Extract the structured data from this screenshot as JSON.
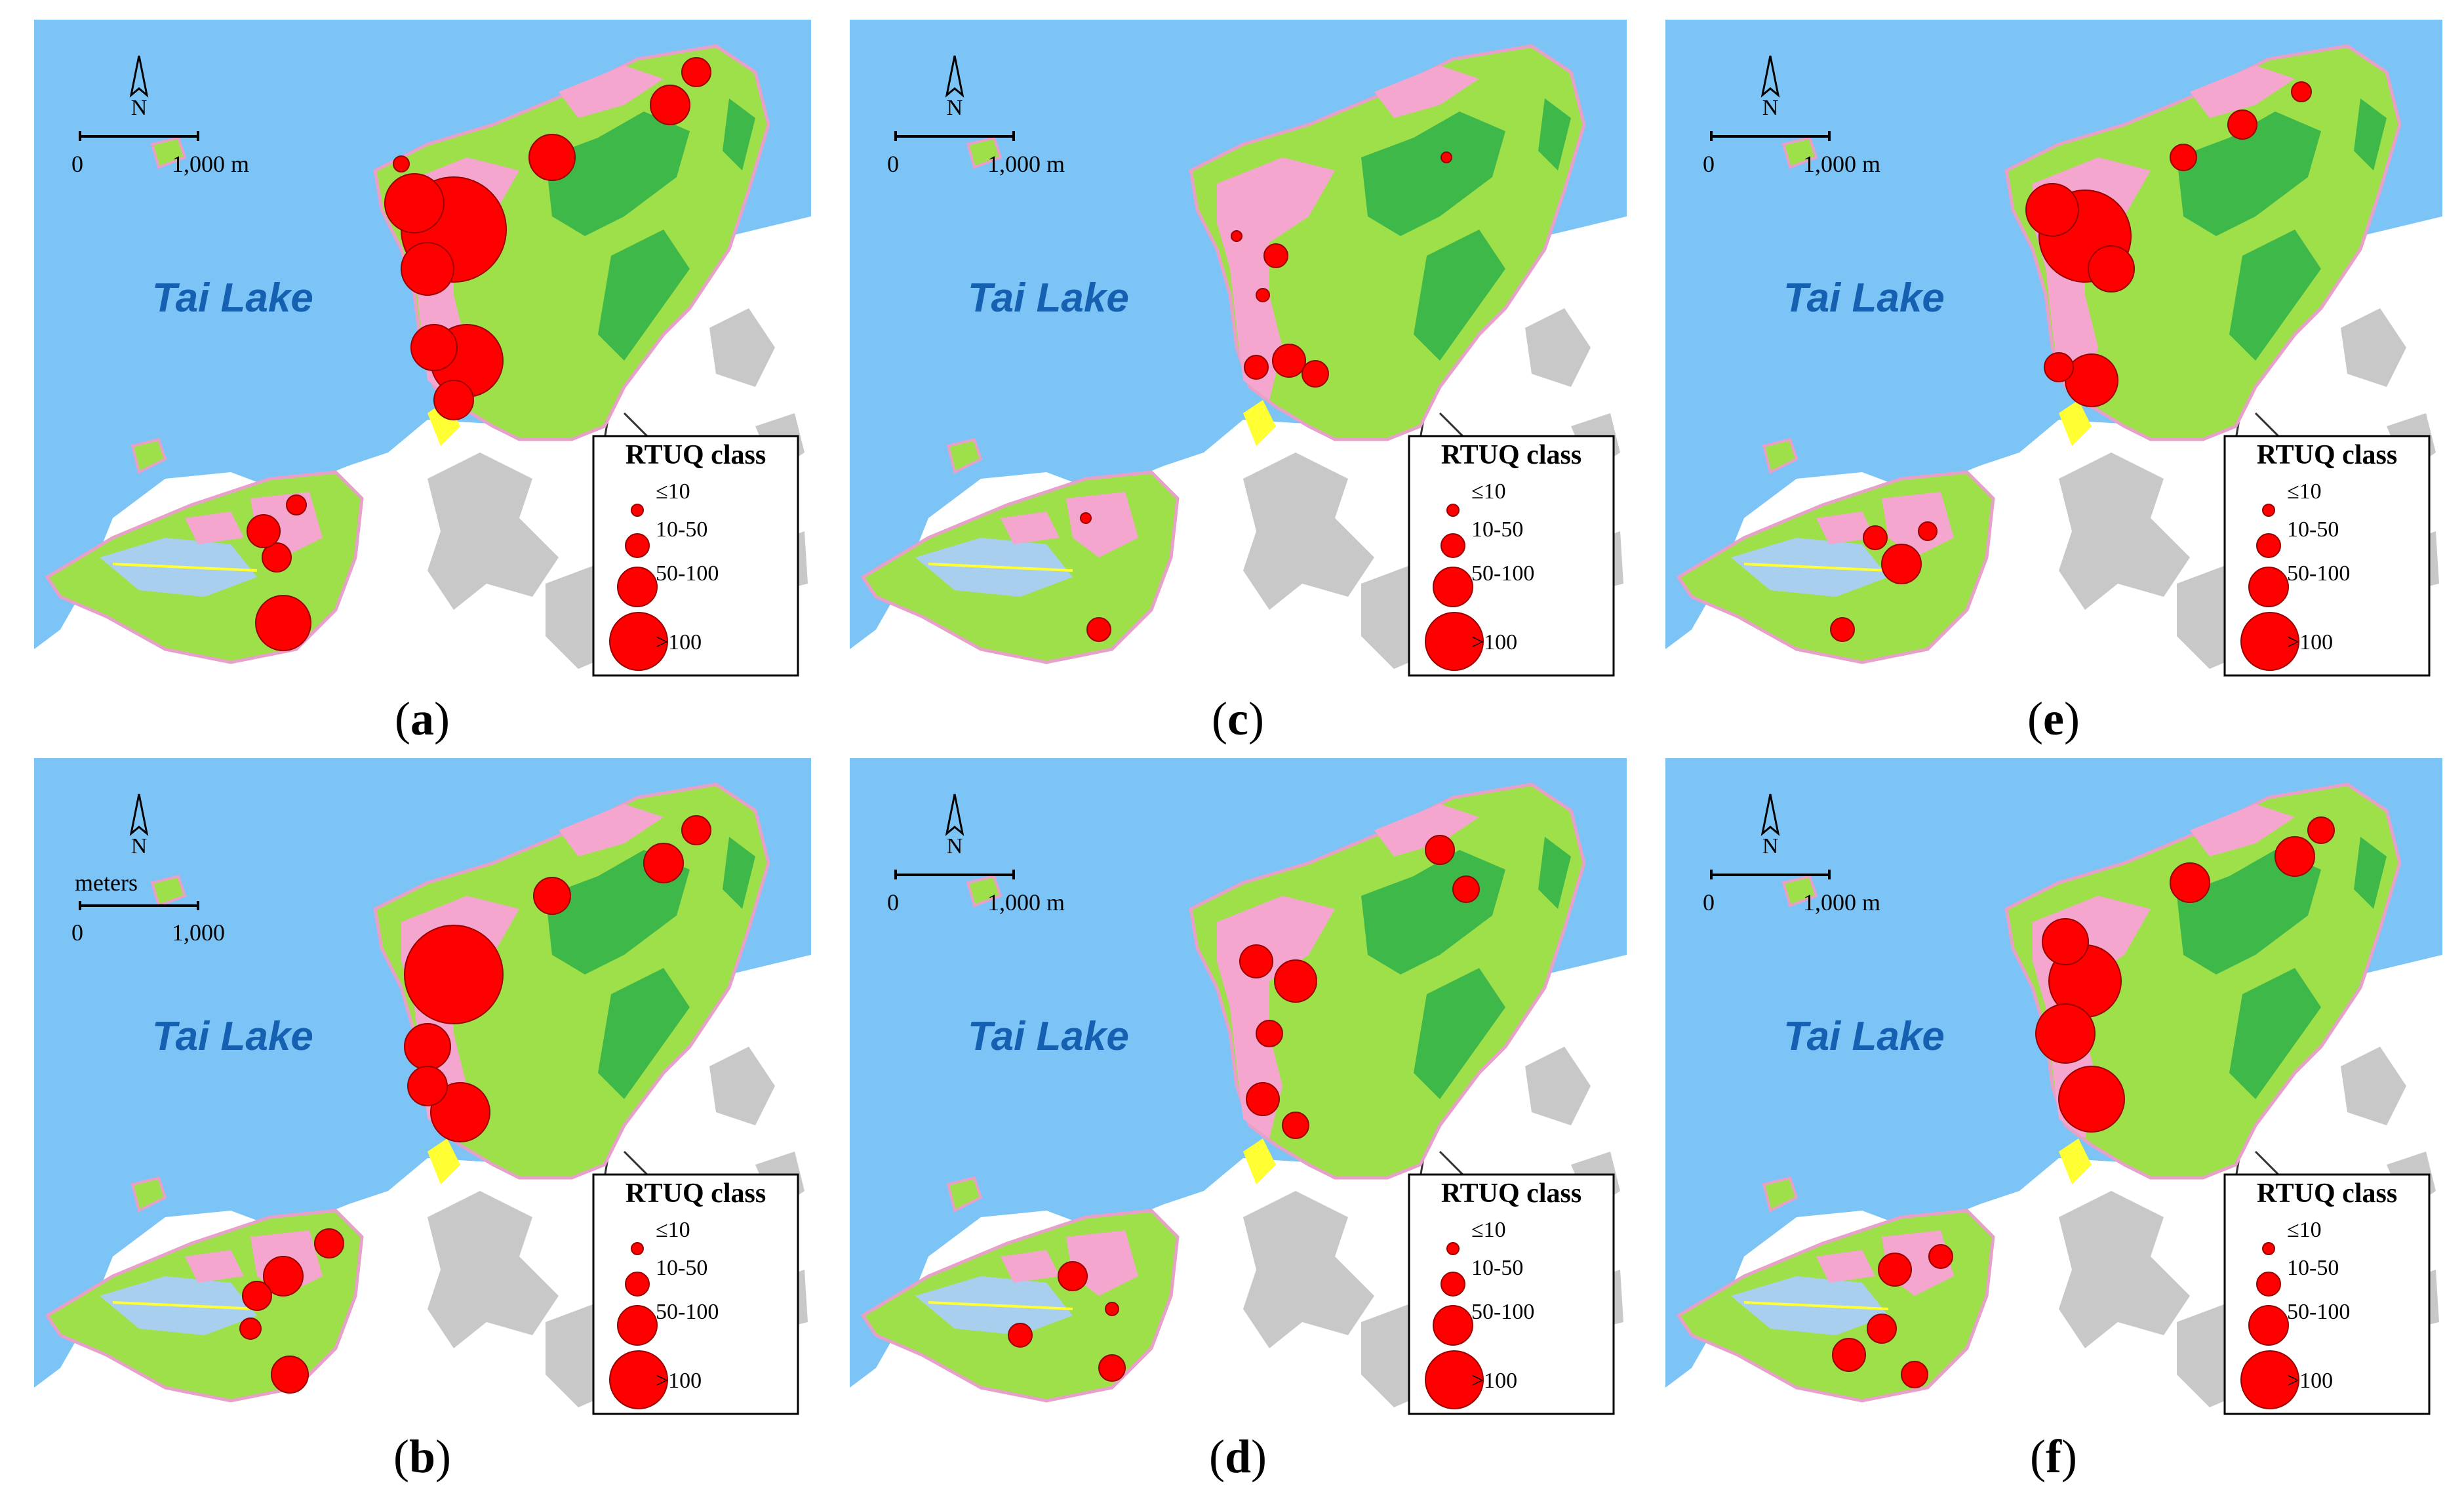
{
  "lake_label": "Tai Lake",
  "north_label": "N",
  "legend": {
    "title": "RTUQ class",
    "classes": [
      "≤10",
      "10-50",
      "50-100",
      ">100"
    ]
  },
  "scalebar_m": {
    "zero": "0",
    "value": "1,000 m"
  },
  "scalebar_meters": {
    "unit": "meters",
    "zero": "0",
    "value": "1,000"
  },
  "panels": [
    {
      "id": "a",
      "label_open": "(",
      "letter": "a",
      "label_close": ")"
    },
    {
      "id": "c",
      "label_open": "(",
      "letter": "c",
      "label_close": ")"
    },
    {
      "id": "e",
      "label_open": "(",
      "letter": "e",
      "label_close": ")"
    },
    {
      "id": "b",
      "label_open": "(",
      "letter": "b",
      "label_close": ")"
    },
    {
      "id": "d",
      "label_open": "(",
      "letter": "d",
      "label_close": ")"
    },
    {
      "id": "f",
      "label_open": "(",
      "letter": "f",
      "label_close": ")"
    }
  ],
  "colors": {
    "lake": "#7cc4f6",
    "land_green": "#9ee04a",
    "forest_green": "#3fb84a",
    "built_pink": "#f4a6cf",
    "urban_gray": "#c8c8c8",
    "yellow": "#ffff33",
    "point_red": "#ff0000"
  }
}
